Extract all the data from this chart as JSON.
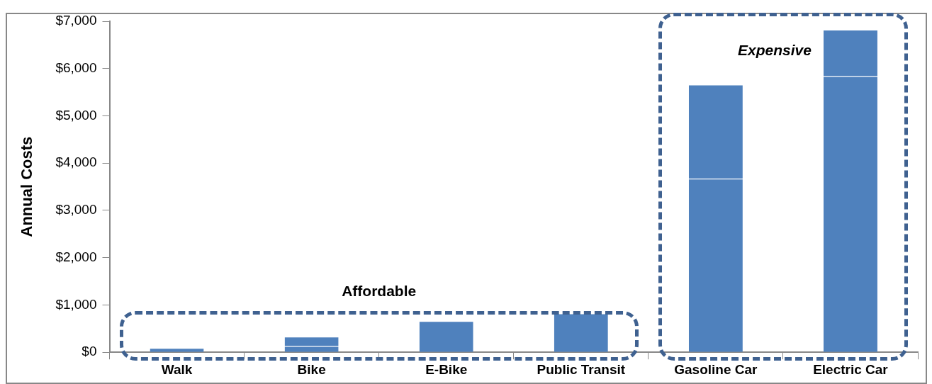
{
  "chart_data": {
    "type": "bar",
    "ylabel": "Annual Costs",
    "categories": [
      "Walk",
      "Bike",
      "E-Bike",
      "Public Transit",
      "Gasoline Car",
      "Electric Car"
    ],
    "stacked": true,
    "series": [
      {
        "color": "#4f81bd",
        "values": [
          90,
          130,
          660,
          820,
          3670,
          5840
        ]
      },
      {
        "color": "#4f81bd",
        "values": [
          null,
          200,
          null,
          null,
          1990,
          980
        ]
      }
    ],
    "ylim": [
      0,
      7000
    ],
    "yticks": [
      {
        "value": 0,
        "label": "$0"
      },
      {
        "value": 1000,
        "label": "$1,000"
      },
      {
        "value": 2000,
        "label": "$2,000"
      },
      {
        "value": 3000,
        "label": "$3,000"
      },
      {
        "value": 4000,
        "label": "$4,000"
      },
      {
        "value": 5000,
        "label": "$5,000"
      },
      {
        "value": 6000,
        "label": "$6,000"
      },
      {
        "value": 7000,
        "label": "$7,000"
      }
    ],
    "grid": false,
    "legend": false,
    "annotations": [
      "Affordable",
      "Expensive"
    ]
  }
}
